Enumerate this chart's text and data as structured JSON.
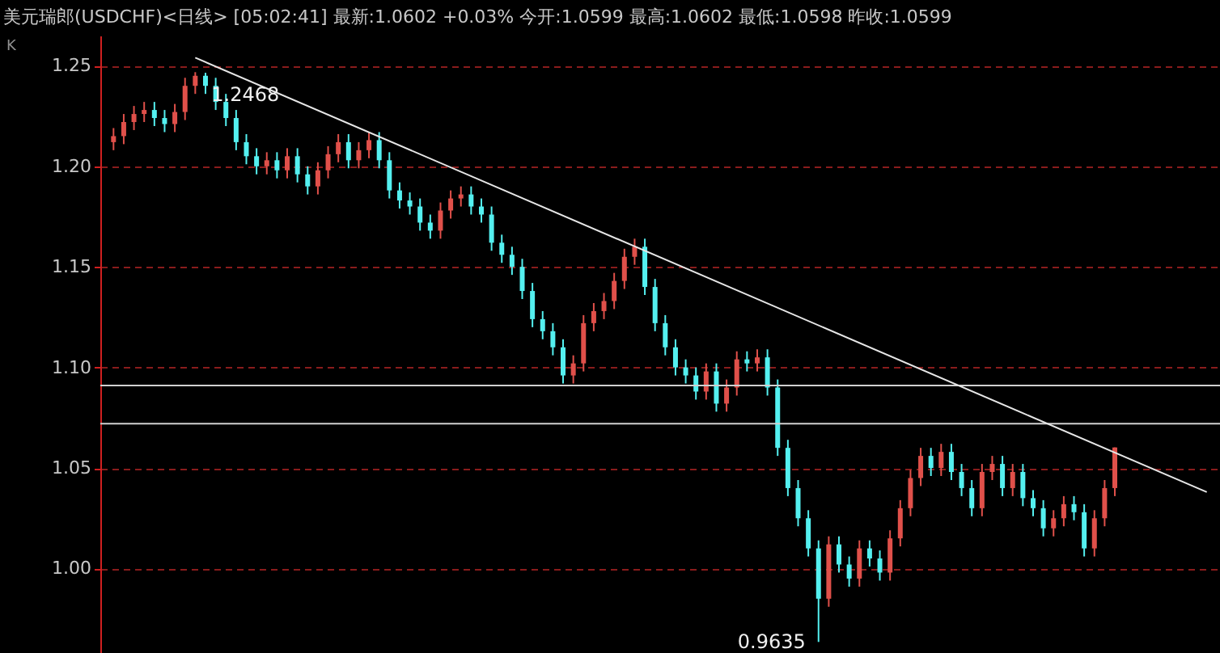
{
  "chart_data": {
    "type": "candlestick",
    "title": "美元瑞郎(USDCHF)<日线>  [05:02:41]  最新:1.0602 +0.03%  今开:1.0599  最高:1.0602  最低:1.0598  昨收:1.0599",
    "categories": [
      null,
      null,
      null,
      null,
      null,
      null,
      null,
      null,
      null,
      null,
      null,
      null,
      null,
      null,
      null,
      null,
      null,
      null,
      null,
      null,
      null,
      null,
      null,
      null,
      null,
      null,
      null,
      null,
      null,
      null,
      null,
      null,
      null,
      null,
      null,
      null,
      null,
      null,
      null,
      null,
      null,
      null,
      null,
      null,
      null,
      null,
      null,
      null,
      null,
      null,
      null,
      null,
      null,
      null,
      null,
      null,
      null,
      null,
      null,
      null,
      null,
      null,
      null,
      null,
      null,
      null,
      null,
      null,
      null,
      null,
      null,
      null,
      null,
      null,
      null,
      null,
      null,
      null,
      null,
      null,
      null,
      null,
      null,
      null,
      null,
      null,
      null,
      null,
      null,
      null,
      null,
      null,
      null,
      null,
      null,
      null,
      null,
      null,
      null,
      null,
      null,
      null,
      null,
      null,
      null,
      null,
      null,
      null
    ],
    "ohlc": [
      [
        1.212,
        1.219,
        1.208,
        1.215
      ],
      [
        1.215,
        1.226,
        1.211,
        1.222
      ],
      [
        1.222,
        1.23,
        1.218,
        1.226
      ],
      [
        1.226,
        1.232,
        1.222,
        1.228
      ],
      [
        1.228,
        1.232,
        1.22,
        1.224
      ],
      [
        1.224,
        1.228,
        1.217,
        1.221
      ],
      [
        1.221,
        1.231,
        1.217,
        1.227
      ],
      [
        1.227,
        1.244,
        1.223,
        1.24
      ],
      [
        1.24,
        1.2468,
        1.236,
        1.245
      ],
      [
        1.245,
        1.2465,
        1.236,
        1.24
      ],
      [
        1.24,
        1.244,
        1.228,
        1.232
      ],
      [
        1.232,
        1.236,
        1.22,
        1.224
      ],
      [
        1.224,
        1.228,
        1.208,
        1.212
      ],
      [
        1.212,
        1.216,
        1.201,
        1.205
      ],
      [
        1.205,
        1.209,
        1.196,
        1.2
      ],
      [
        1.2,
        1.207,
        1.196,
        1.203
      ],
      [
        1.203,
        1.207,
        1.194,
        1.198
      ],
      [
        1.198,
        1.209,
        1.194,
        1.205
      ],
      [
        1.205,
        1.209,
        1.192,
        1.196
      ],
      [
        1.196,
        1.2,
        1.186,
        1.19
      ],
      [
        1.19,
        1.202,
        1.186,
        1.198
      ],
      [
        1.198,
        1.21,
        1.194,
        1.206
      ],
      [
        1.206,
        1.216,
        1.202,
        1.212
      ],
      [
        1.212,
        1.216,
        1.199,
        1.203
      ],
      [
        1.203,
        1.212,
        1.199,
        1.208
      ],
      [
        1.208,
        1.217,
        1.204,
        1.213
      ],
      [
        1.213,
        1.217,
        1.199,
        1.203
      ],
      [
        1.203,
        1.207,
        1.184,
        1.188
      ],
      [
        1.188,
        1.192,
        1.179,
        1.183
      ],
      [
        1.183,
        1.187,
        1.176,
        1.18
      ],
      [
        1.18,
        1.184,
        1.168,
        1.172
      ],
      [
        1.172,
        1.176,
        1.164,
        1.168
      ],
      [
        1.168,
        1.182,
        1.164,
        1.178
      ],
      [
        1.178,
        1.188,
        1.174,
        1.184
      ],
      [
        1.184,
        1.19,
        1.18,
        1.186
      ],
      [
        1.186,
        1.19,
        1.176,
        1.18
      ],
      [
        1.18,
        1.184,
        1.172,
        1.176
      ],
      [
        1.176,
        1.18,
        1.158,
        1.162
      ],
      [
        1.162,
        1.166,
        1.152,
        1.156
      ],
      [
        1.156,
        1.16,
        1.146,
        1.15
      ],
      [
        1.15,
        1.154,
        1.134,
        1.138
      ],
      [
        1.138,
        1.142,
        1.12,
        1.124
      ],
      [
        1.124,
        1.128,
        1.114,
        1.118
      ],
      [
        1.118,
        1.122,
        1.106,
        1.11
      ],
      [
        1.11,
        1.114,
        1.092,
        1.096
      ],
      [
        1.096,
        1.106,
        1.092,
        1.102
      ],
      [
        1.102,
        1.126,
        1.098,
        1.122
      ],
      [
        1.122,
        1.132,
        1.118,
        1.128
      ],
      [
        1.128,
        1.137,
        1.124,
        1.133
      ],
      [
        1.133,
        1.147,
        1.129,
        1.143
      ],
      [
        1.143,
        1.159,
        1.139,
        1.155
      ],
      [
        1.155,
        1.164,
        1.151,
        1.16
      ],
      [
        1.16,
        1.164,
        1.136,
        1.14
      ],
      [
        1.14,
        1.144,
        1.118,
        1.122
      ],
      [
        1.122,
        1.126,
        1.106,
        1.11
      ],
      [
        1.11,
        1.114,
        1.096,
        1.1
      ],
      [
        1.1,
        1.104,
        1.092,
        1.096
      ],
      [
        1.096,
        1.1,
        1.084,
        1.088
      ],
      [
        1.088,
        1.102,
        1.084,
        1.098
      ],
      [
        1.098,
        1.102,
        1.078,
        1.082
      ],
      [
        1.082,
        1.094,
        1.078,
        1.09
      ],
      [
        1.09,
        1.108,
        1.086,
        1.104
      ],
      [
        1.104,
        1.108,
        1.098,
        1.102
      ],
      [
        1.102,
        1.109,
        1.098,
        1.105
      ],
      [
        1.105,
        1.109,
        1.086,
        1.09
      ],
      [
        1.09,
        1.094,
        1.056,
        1.06
      ],
      [
        1.06,
        1.064,
        1.036,
        1.04
      ],
      [
        1.04,
        1.044,
        1.021,
        1.025
      ],
      [
        1.025,
        1.029,
        1.006,
        1.01
      ],
      [
        1.01,
        1.014,
        0.9635,
        0.985
      ],
      [
        0.985,
        1.016,
        0.981,
        1.012
      ],
      [
        1.012,
        1.016,
        0.998,
        1.002
      ],
      [
        1.002,
        1.006,
        0.991,
        0.995
      ],
      [
        0.995,
        1.014,
        0.991,
        1.01
      ],
      [
        1.01,
        1.014,
        1.001,
        1.005
      ],
      [
        1.005,
        1.009,
        0.994,
        0.998
      ],
      [
        0.998,
        1.019,
        0.994,
        1.015
      ],
      [
        1.015,
        1.034,
        1.011,
        1.03
      ],
      [
        1.03,
        1.049,
        1.026,
        1.045
      ],
      [
        1.045,
        1.06,
        1.041,
        1.056
      ],
      [
        1.056,
        1.06,
        1.046,
        1.05
      ],
      [
        1.05,
        1.062,
        1.046,
        1.058
      ],
      [
        1.058,
        1.062,
        1.044,
        1.048
      ],
      [
        1.048,
        1.052,
        1.036,
        1.04
      ],
      [
        1.04,
        1.044,
        1.026,
        1.03
      ],
      [
        1.03,
        1.052,
        1.026,
        1.048
      ],
      [
        1.048,
        1.056,
        1.044,
        1.052
      ],
      [
        1.052,
        1.056,
        1.036,
        1.04
      ],
      [
        1.04,
        1.052,
        1.036,
        1.048
      ],
      [
        1.048,
        1.052,
        1.031,
        1.035
      ],
      [
        1.035,
        1.039,
        1.026,
        1.03
      ],
      [
        1.03,
        1.034,
        1.016,
        1.02
      ],
      [
        1.02,
        1.029,
        1.016,
        1.025
      ],
      [
        1.025,
        1.036,
        1.021,
        1.032
      ],
      [
        1.032,
        1.036,
        1.024,
        1.028
      ],
      [
        1.028,
        1.032,
        1.006,
        1.01
      ],
      [
        1.01,
        1.029,
        1.006,
        1.025
      ],
      [
        1.025,
        1.044,
        1.021,
        1.04
      ],
      [
        1.04,
        1.0602,
        1.036,
        1.0602
      ],
      null,
      null,
      null,
      null,
      null,
      null,
      null,
      null,
      null
    ],
    "series": [
      {
        "type": "line",
        "values": [
          null,
          null,
          null,
          null,
          null,
          null,
          null,
          null,
          1.254,
          null,
          null,
          null,
          null,
          null,
          null,
          null,
          null,
          null,
          null,
          null,
          null,
          null,
          null,
          null,
          null,
          null,
          null,
          null,
          null,
          null,
          null,
          null,
          null,
          null,
          null,
          null,
          null,
          null,
          null,
          null,
          null,
          null,
          null,
          null,
          null,
          null,
          null,
          null,
          null,
          null,
          null,
          null,
          null,
          null,
          null,
          null,
          null,
          null,
          null,
          null,
          null,
          null,
          null,
          null,
          null,
          null,
          null,
          null,
          null,
          null,
          null,
          null,
          null,
          null,
          null,
          null,
          null,
          null,
          null,
          null,
          null,
          null,
          null,
          null,
          null,
          null,
          null,
          null,
          null,
          null,
          null,
          null,
          null,
          null,
          null,
          null,
          null,
          null,
          null,
          null,
          null,
          null,
          null,
          null,
          null,
          null,
          null,
          1.038
        ],
        "color": "#e6e6e6"
      }
    ],
    "ref_lines": [
      {
        "axis": "y",
        "value": 1.091,
        "color": "#d0d0d0"
      },
      {
        "axis": "y",
        "value": 1.072,
        "color": "#d0d0d0"
      }
    ],
    "annotations": [
      "K",
      {
        "text": "1.2468",
        "y": 1.2468
      },
      "0.9635"
    ],
    "ylim": [
      0.958,
      1.265
    ],
    "yticks": [
      {
        "value": 1.0,
        "label": "1.00"
      },
      1.05,
      {
        "value": 1.1,
        "label": "1.10"
      },
      1.15,
      {
        "value": 1.2,
        "label": "1.20"
      },
      1.25
    ],
    "grid": "y",
    "tick_labels": "y"
  }
}
